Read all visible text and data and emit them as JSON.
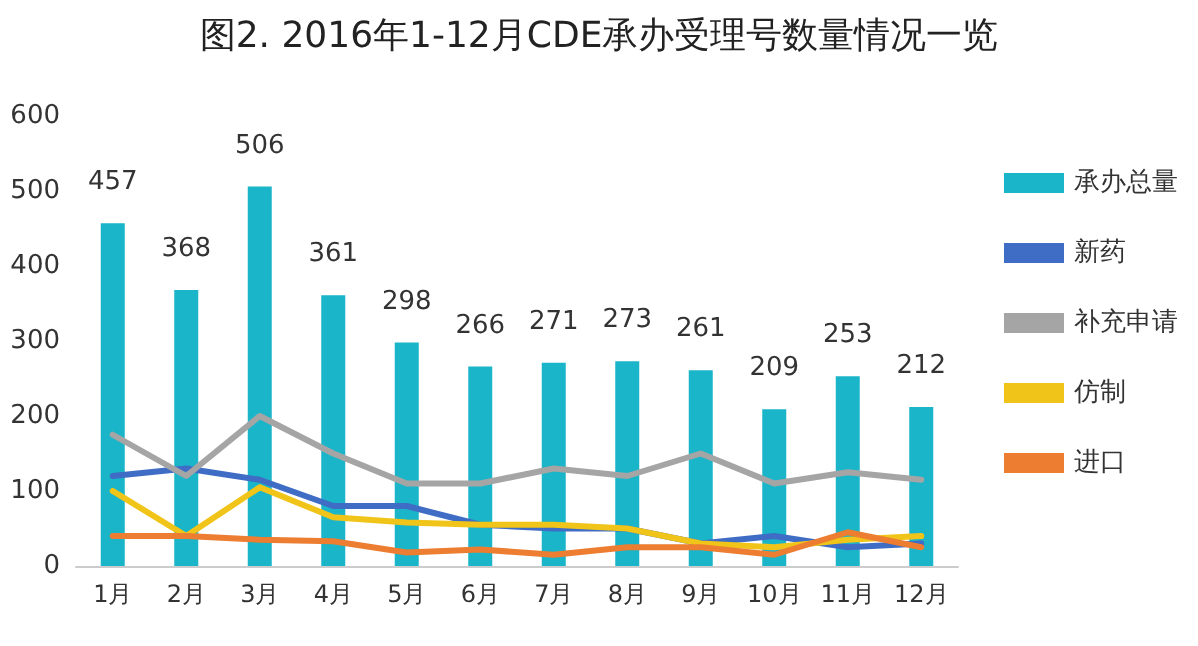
{
  "chart_data": {
    "type": "bar",
    "title": "图2. 2016年1-12月CDE承办受理号数量情况一览",
    "categories": [
      "1月",
      "2月",
      "3月",
      "4月",
      "5月",
      "6月",
      "7月",
      "8月",
      "9月",
      "10月",
      "11月",
      "12月"
    ],
    "series": [
      {
        "name": "承办总量",
        "color": "#1ab5c8",
        "values": [
          457,
          368,
          506,
          361,
          298,
          266,
          271,
          273,
          261,
          209,
          253,
          212
        ],
        "data_labels": true
      },
      {
        "name": "新药",
        "type": "line",
        "color": "#3f6cc4",
        "values": [
          120,
          130,
          115,
          80,
          80,
          55,
          50,
          50,
          30,
          40,
          25,
          30
        ]
      },
      {
        "name": "补充申请",
        "type": "line",
        "color": "#a5a5a5",
        "values": [
          175,
          120,
          200,
          150,
          110,
          110,
          130,
          120,
          150,
          110,
          125,
          115
        ]
      },
      {
        "name": "仿制",
        "type": "line",
        "color": "#f0c419",
        "values": [
          100,
          40,
          105,
          65,
          58,
          55,
          55,
          50,
          30,
          25,
          35,
          40
        ]
      },
      {
        "name": "进口",
        "type": "line",
        "color": "#ec7d31",
        "values": [
          40,
          40,
          35,
          33,
          18,
          22,
          15,
          25,
          25,
          15,
          45,
          25
        ]
      }
    ],
    "ylim": [
      0,
      600
    ],
    "yticks": [
      0,
      100,
      200,
      300,
      400,
      500,
      600
    ],
    "grid": false,
    "legend": "right",
    "marker": "none"
  }
}
